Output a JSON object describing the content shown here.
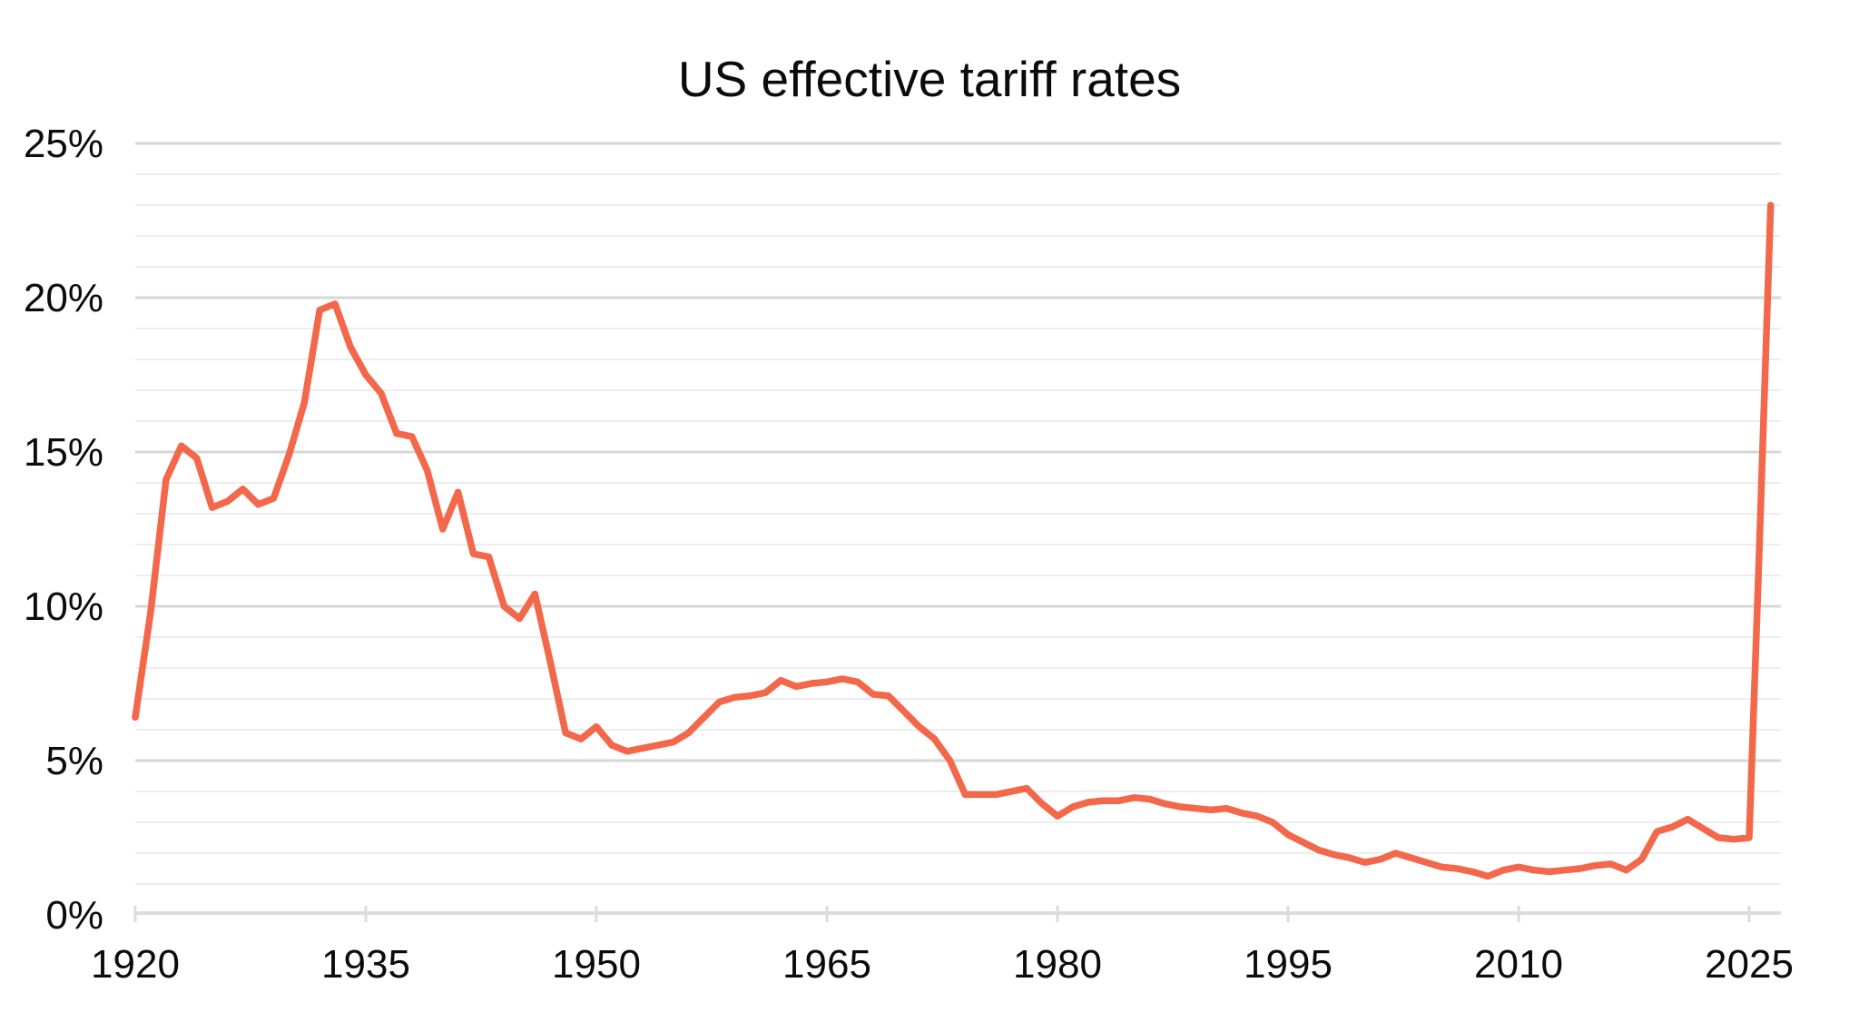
{
  "title": "US effective tariff rates",
  "colors": {
    "line": "#F3674A",
    "grid_minor": "#EDEDED",
    "grid_major": "#D7D7D7",
    "axis": "#DCDCDC",
    "text": "#0B0B0B",
    "background": "#FFFFFF"
  },
  "chart_data": {
    "type": "line",
    "title": "US effective tariff rates",
    "xlabel": "",
    "ylabel": "",
    "legend": "none",
    "grid": "horizontal minor lines every 1%, major lines every 5%",
    "xlim": [
      1920,
      2027
    ],
    "ylim": [
      0,
      25
    ],
    "x_ticks": [
      1920,
      1935,
      1950,
      1965,
      1980,
      1995,
      2010,
      2025
    ],
    "x_tick_labels": [
      "1920",
      "1935",
      "1950",
      "1965",
      "1980",
      "1995",
      "2010",
      "2025"
    ],
    "y_ticks": [
      0,
      5,
      10,
      15,
      20,
      25
    ],
    "y_tick_labels": [
      "0%",
      "5%",
      "10%",
      "15%",
      "20%",
      "25%"
    ],
    "series": [
      {
        "name": "US effective tariff rate",
        "x": [
          1920,
          1921,
          1922,
          1923,
          1924,
          1925,
          1926,
          1927,
          1928,
          1929,
          1930,
          1931,
          1932,
          1933,
          1934,
          1935,
          1936,
          1937,
          1938,
          1939,
          1940,
          1941,
          1942,
          1943,
          1944,
          1945,
          1946,
          1947,
          1948,
          1949,
          1950,
          1951,
          1952,
          1953,
          1954,
          1955,
          1956,
          1957,
          1958,
          1959,
          1960,
          1961,
          1962,
          1963,
          1964,
          1965,
          1966,
          1967,
          1968,
          1969,
          1970,
          1971,
          1972,
          1973,
          1974,
          1975,
          1976,
          1977,
          1978,
          1979,
          1980,
          1981,
          1982,
          1983,
          1984,
          1985,
          1986,
          1987,
          1988,
          1989,
          1990,
          1991,
          1992,
          1993,
          1994,
          1995,
          1996,
          1997,
          1998,
          1999,
          2000,
          2001,
          2002,
          2003,
          2004,
          2005,
          2006,
          2007,
          2008,
          2009,
          2010,
          2011,
          2012,
          2013,
          2014,
          2015,
          2016,
          2017,
          2018,
          2019,
          2020,
          2021,
          2022,
          2023,
          2024,
          2025,
          2025.6,
          2026.4
        ],
        "values": [
          6.4,
          9.8,
          14.1,
          15.2,
          14.8,
          13.2,
          13.4,
          13.8,
          13.3,
          13.5,
          14.9,
          16.6,
          19.6,
          19.8,
          18.4,
          17.5,
          16.9,
          15.6,
          15.5,
          14.4,
          12.5,
          13.7,
          11.7,
          11.6,
          10.0,
          9.6,
          10.4,
          8.2,
          5.9,
          5.7,
          6.1,
          5.5,
          5.3,
          5.4,
          5.5,
          5.6,
          5.9,
          6.4,
          6.9,
          7.05,
          7.1,
          7.2,
          7.6,
          7.4,
          7.5,
          7.55,
          7.65,
          7.55,
          7.15,
          7.1,
          6.6,
          6.1,
          5.7,
          5.0,
          3.9,
          3.9,
          3.9,
          4.0,
          4.1,
          3.6,
          3.2,
          3.5,
          3.65,
          3.7,
          3.7,
          3.8,
          3.75,
          3.6,
          3.5,
          3.45,
          3.4,
          3.45,
          3.3,
          3.2,
          3.0,
          2.6,
          2.35,
          2.1,
          1.95,
          1.85,
          1.7,
          1.8,
          2.0,
          1.85,
          1.7,
          1.55,
          1.5,
          1.4,
          1.25,
          1.45,
          1.55,
          1.45,
          1.4,
          1.45,
          1.5,
          1.6,
          1.65,
          1.45,
          1.8,
          2.7,
          2.85,
          3.1,
          2.8,
          2.5,
          2.45,
          2.5,
          11.0,
          23.0
        ]
      }
    ]
  }
}
